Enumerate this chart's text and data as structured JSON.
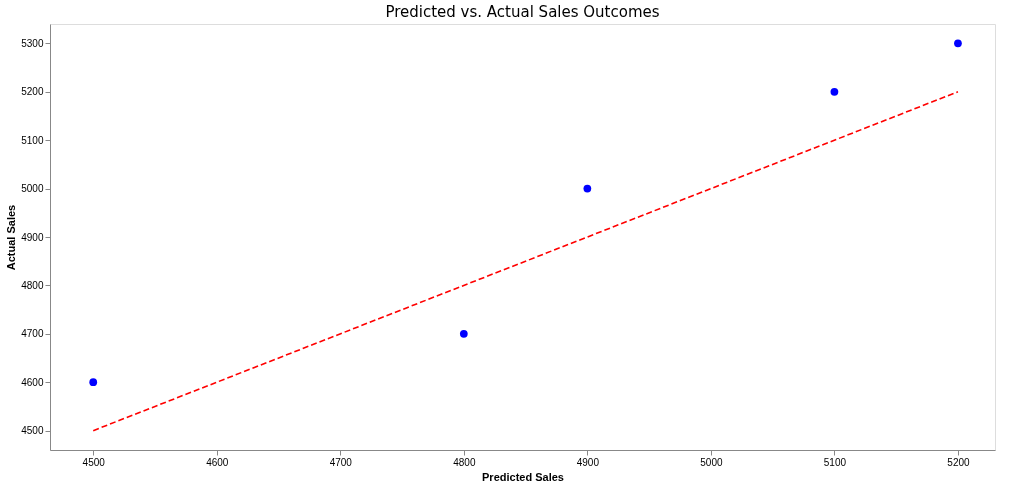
{
  "chart_data": {
    "type": "scatter",
    "title": "Predicted vs. Actual Sales Outcomes",
    "xlabel": "Predicted Sales",
    "ylabel": "Actual Sales",
    "x": [
      4500,
      4800,
      4900,
      5100,
      5200
    ],
    "series": [
      {
        "color": "#0000ff",
        "marker": "circle",
        "values": [
          4600,
          4700,
          5000,
          5200,
          5300
        ]
      },
      {
        "type": "line",
        "color": "#ff0000",
        "line_style": "dashed",
        "x": [
          4500,
          5200
        ],
        "values": [
          4500,
          5200
        ]
      }
    ],
    "xlim": [
      4465,
      5230
    ],
    "ylim": [
      4460,
      5340
    ],
    "xticks": [
      4500,
      4600,
      4700,
      4800,
      4900,
      5000,
      5100,
      5200
    ],
    "yticks": [
      4500,
      4600,
      4700,
      4800,
      4900,
      5000,
      5100,
      5200,
      5300
    ],
    "grid": false
  }
}
